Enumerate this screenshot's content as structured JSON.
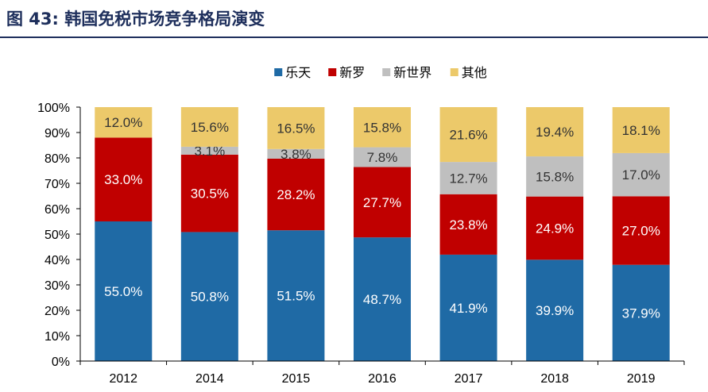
{
  "figure_title": "图 43: 韩国免税市场竞争格局演变",
  "chart_data": {
    "type": "bar",
    "stacked": true,
    "categories": [
      "2012",
      "2014",
      "2015",
      "2016",
      "2017",
      "2018",
      "2019"
    ],
    "series": [
      {
        "name": "乐天",
        "color": "#1f6aa5",
        "values": [
          55.0,
          50.8,
          51.5,
          48.7,
          41.9,
          39.9,
          37.9
        ],
        "labels": [
          "55.0%",
          "50.8%",
          "51.5%",
          "48.7%",
          "41.9%",
          "39.9%",
          "37.9%"
        ],
        "label_color": "#ffffff"
      },
      {
        "name": "新罗",
        "color": "#c00000",
        "values": [
          33.0,
          30.5,
          28.2,
          27.7,
          23.8,
          24.9,
          27.0
        ],
        "labels": [
          "33.0%",
          "30.5%",
          "28.2%",
          "27.7%",
          "23.8%",
          "24.9%",
          "27.0%"
        ],
        "label_color": "#ffffff"
      },
      {
        "name": "新世界",
        "color": "#bfbfbf",
        "values": [
          0,
          3.1,
          3.8,
          7.8,
          12.7,
          15.8,
          17.0
        ],
        "labels": [
          "",
          "3.1%",
          "3.8%",
          "7.8%",
          "12.7%",
          "15.8%",
          "17.0%"
        ],
        "label_color": "#333333"
      },
      {
        "name": "其他",
        "color": "#ecc96a",
        "values": [
          12.0,
          15.6,
          16.5,
          15.8,
          21.6,
          19.4,
          18.1
        ],
        "labels": [
          "12.0%",
          "15.6%",
          "16.5%",
          "15.8%",
          "21.6%",
          "19.4%",
          "18.1%"
        ],
        "label_color": "#333333"
      }
    ],
    "y_ticks": [
      "0%",
      "10%",
      "20%",
      "30%",
      "40%",
      "50%",
      "60%",
      "70%",
      "80%",
      "90%",
      "100%"
    ],
    "ylim": [
      0,
      100
    ],
    "legend_position": "top-center",
    "grid": false
  }
}
